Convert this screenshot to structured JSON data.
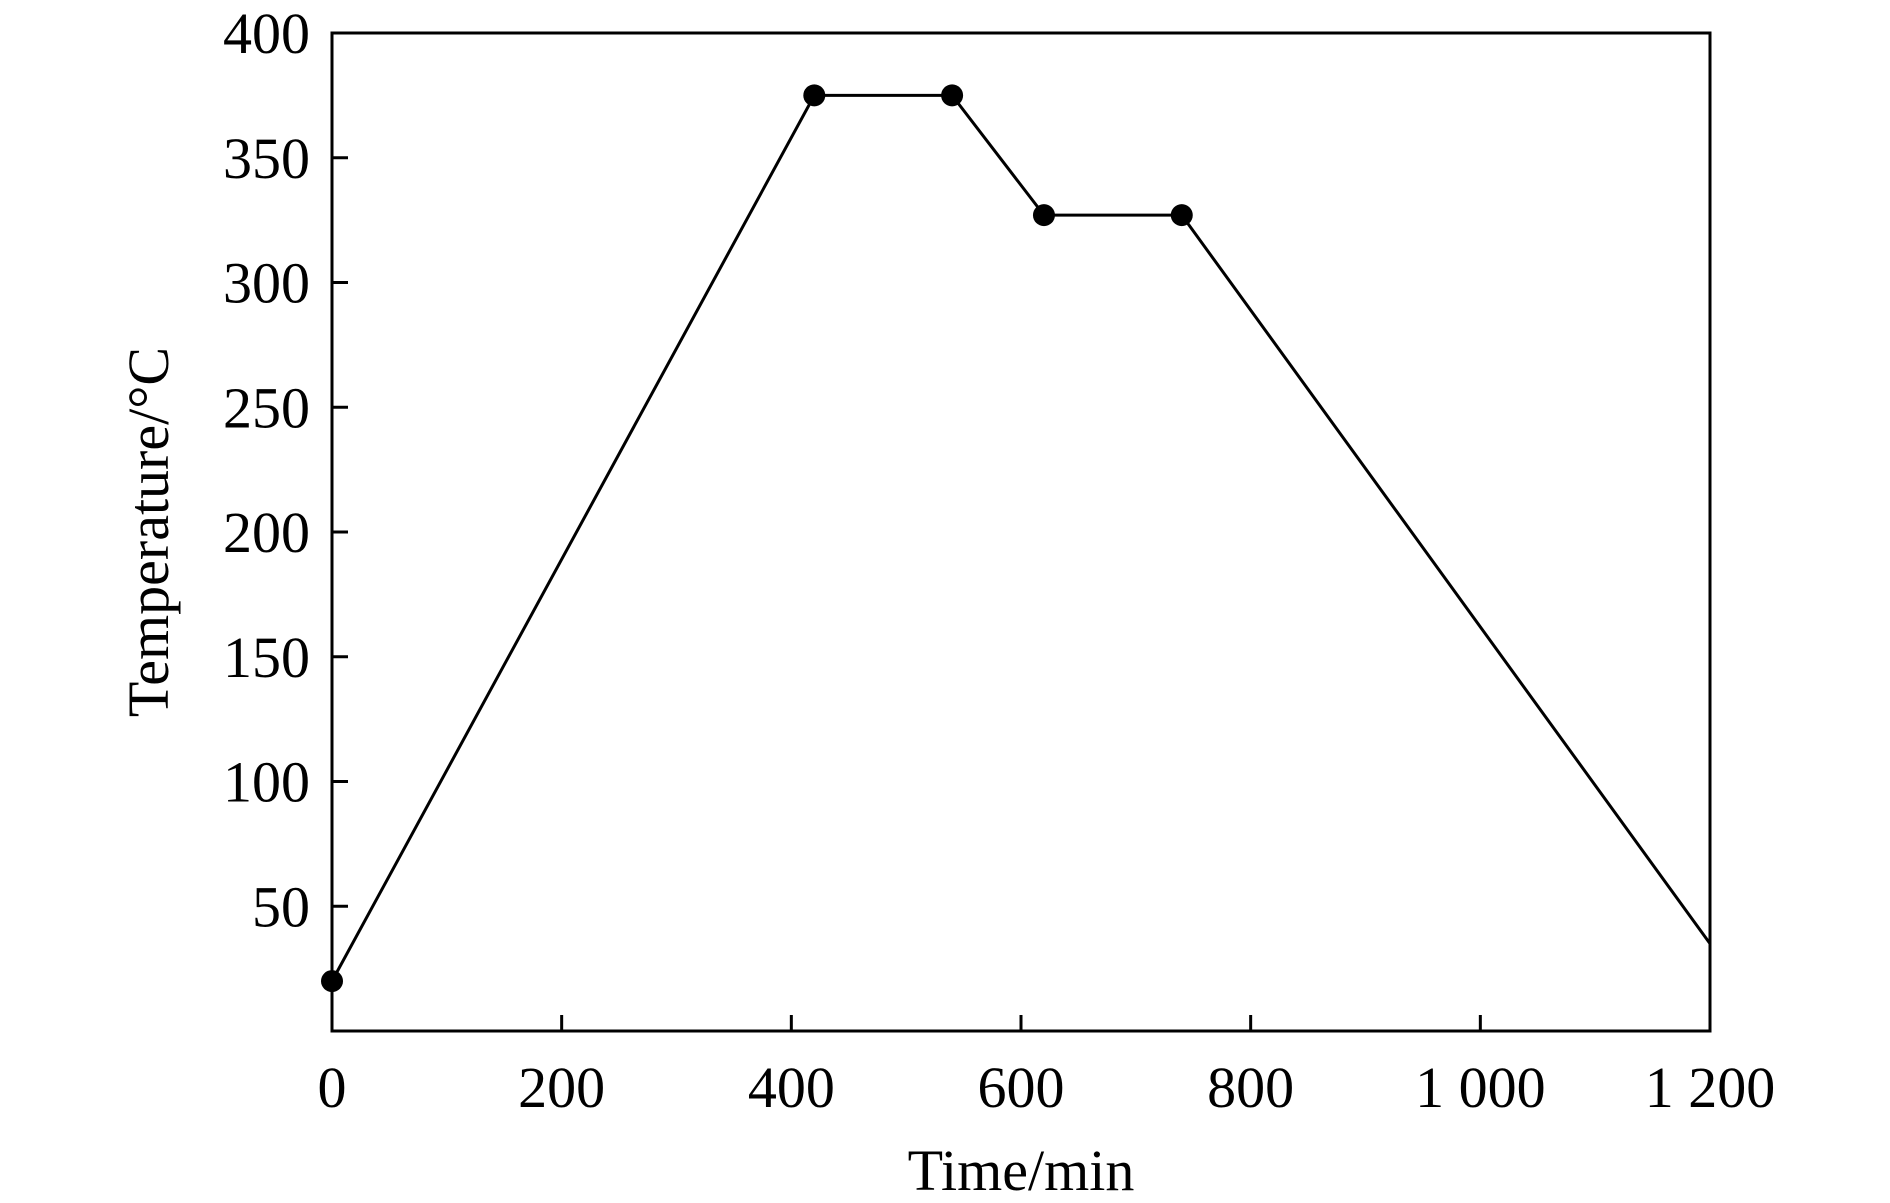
{
  "chart_data": {
    "type": "line",
    "title": "",
    "xlabel": "Time/min",
    "ylabel": "Temperature/°C",
    "xlim": [
      0,
      1200
    ],
    "ylim": [
      0,
      400
    ],
    "grid": false,
    "x_ticks": [
      {
        "value": 0,
        "label": "0"
      },
      {
        "value": 200,
        "label": "200"
      },
      {
        "value": 400,
        "label": "400"
      },
      {
        "value": 600,
        "label": "600"
      },
      {
        "value": 800,
        "label": "800"
      },
      {
        "value": 1000,
        "label": "1 000"
      },
      {
        "value": 1200,
        "label": "1 200"
      }
    ],
    "y_ticks": [
      {
        "value": 50,
        "label": "50"
      },
      {
        "value": 100,
        "label": "100"
      },
      {
        "value": 150,
        "label": "150"
      },
      {
        "value": 200,
        "label": "200"
      },
      {
        "value": 250,
        "label": "250"
      },
      {
        "value": 300,
        "label": "300"
      },
      {
        "value": 350,
        "label": "350"
      },
      {
        "value": 400,
        "label": "400"
      }
    ],
    "series": [
      {
        "color": "#000000",
        "x": [
          0,
          420,
          540,
          620,
          740,
          1200
        ],
        "y": [
          20,
          375,
          375,
          327,
          327,
          35
        ],
        "markers_x": [
          0,
          420,
          540,
          620,
          740
        ],
        "markers_y": [
          20,
          375,
          375,
          327,
          327
        ]
      }
    ]
  }
}
